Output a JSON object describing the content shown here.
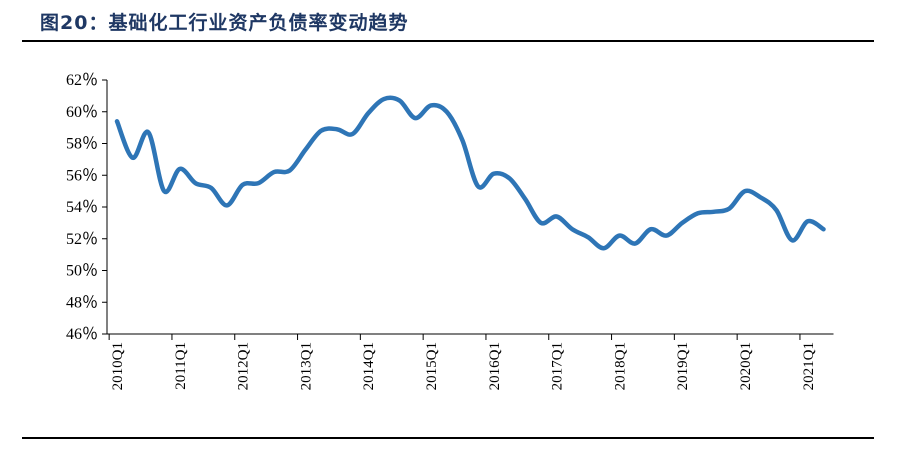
{
  "figure": {
    "title": "图20：基础化工行业资产负债率变动趋势"
  },
  "chart_data": {
    "type": "line",
    "title": "图20：基础化工行业资产负债率变动趋势",
    "xlabel": "",
    "ylabel": "",
    "ylim": [
      46,
      62
    ],
    "y_ticks": [
      "46％",
      "48％",
      "50％",
      "52％",
      "54％",
      "56％",
      "58％",
      "60％",
      "62％"
    ],
    "x_tick_labels": [
      "2010Q1",
      "2011Q1",
      "2012Q1",
      "2013Q1",
      "2014Q1",
      "2015Q1",
      "2016Q1",
      "2017Q1",
      "2018Q1",
      "2019Q1",
      "2020Q1",
      "2021Q1"
    ],
    "x": [
      "2010Q1",
      "2010Q2",
      "2010Q3",
      "2010Q4",
      "2011Q1",
      "2011Q2",
      "2011Q3",
      "2011Q4",
      "2012Q1",
      "2012Q2",
      "2012Q3",
      "2012Q4",
      "2013Q1",
      "2013Q2",
      "2013Q3",
      "2013Q4",
      "2014Q1",
      "2014Q2",
      "2014Q3",
      "2014Q4",
      "2015Q1",
      "2015Q2",
      "2015Q3",
      "2015Q4",
      "2016Q1",
      "2016Q2",
      "2016Q3",
      "2016Q4",
      "2017Q1",
      "2017Q2",
      "2017Q3",
      "2017Q4",
      "2018Q1",
      "2018Q2",
      "2018Q3",
      "2018Q4",
      "2019Q1",
      "2019Q2",
      "2019Q3",
      "2019Q4",
      "2020Q1",
      "2020Q2",
      "2020Q3",
      "2020Q4",
      "2021Q1",
      "2021Q2"
    ],
    "series": [
      {
        "name": "",
        "color": "#2e75b6",
        "values": [
          59.4,
          57.1,
          58.7,
          55.0,
          56.4,
          55.5,
          55.2,
          54.1,
          55.4,
          55.5,
          56.2,
          56.3,
          57.6,
          58.8,
          58.9,
          58.6,
          59.9,
          60.8,
          60.7,
          59.6,
          60.4,
          60.0,
          58.2,
          55.3,
          56.1,
          55.8,
          54.5,
          53.0,
          53.4,
          52.6,
          52.1,
          51.4,
          52.2,
          51.7,
          52.6,
          52.2,
          53.0,
          53.6,
          53.7,
          53.9,
          55.0,
          54.6,
          53.8,
          51.9,
          53.1,
          52.6
        ]
      }
    ],
    "grid": false,
    "legend": "none"
  }
}
